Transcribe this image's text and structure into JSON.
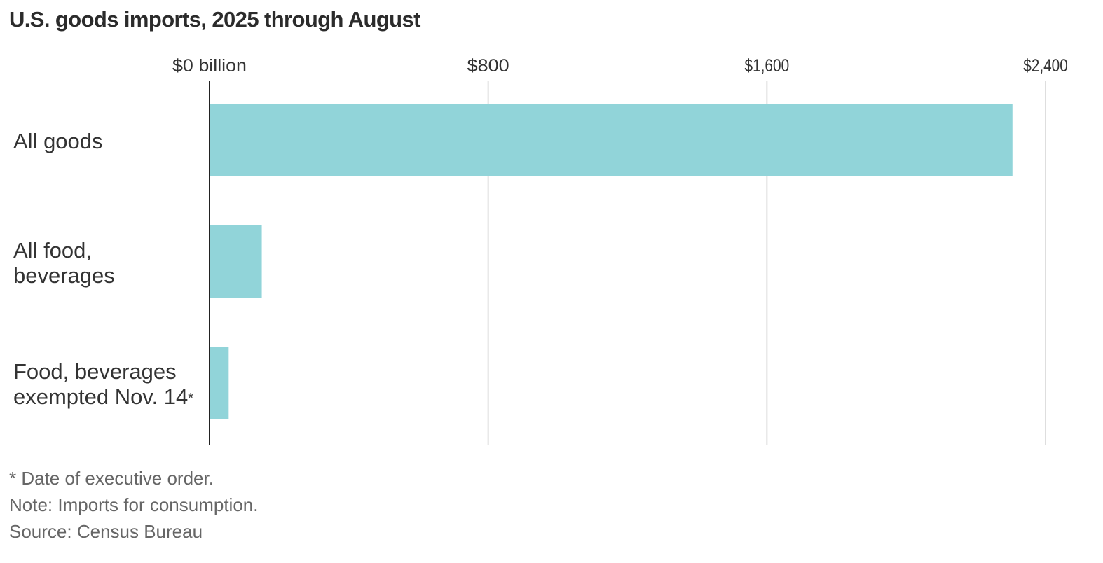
{
  "title": "U.S. goods imports, 2025 through August",
  "colors": {
    "bar": "#91d4d9",
    "grid": "#dedede",
    "axis": "#222222",
    "text": "#333333",
    "note": "#666666"
  },
  "chart_data": {
    "type": "bar",
    "orientation": "horizontal",
    "title": "U.S. goods imports, 2025 through August",
    "categories": [
      {
        "lines": [
          "All goods"
        ],
        "footnote_mark": ""
      },
      {
        "lines": [
          "All food,",
          "beverages"
        ],
        "footnote_mark": ""
      },
      {
        "lines": [
          "Food, beverages",
          "exempted Nov. 14"
        ],
        "footnote_mark": "*"
      }
    ],
    "values": [
      2305,
      150,
      55
    ],
    "unit": "billion dollars",
    "xlim": [
      0,
      2400
    ],
    "ticks": [
      {
        "value": 0,
        "label": "$0 billion"
      },
      {
        "value": 800,
        "label": "$800"
      },
      {
        "value": 1600,
        "label": "$1,600"
      },
      {
        "value": 2400,
        "label": "$2,400"
      }
    ],
    "grid": true,
    "legend": "none"
  },
  "notes": [
    "* Date of executive order.",
    "Note: Imports for consumption.",
    "Source: Census Bureau"
  ]
}
